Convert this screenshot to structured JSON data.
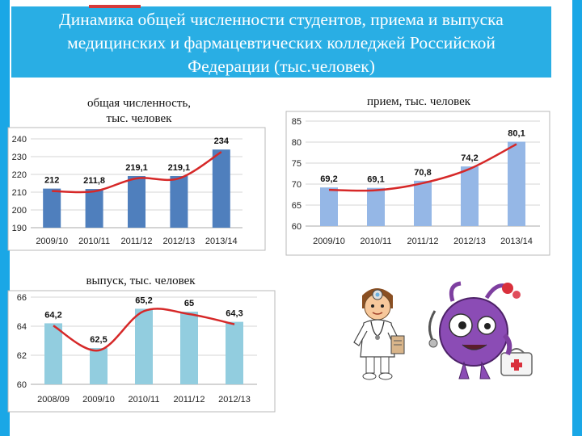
{
  "header": {
    "title_lines": [
      "Динамика общей численности студентов, приема и выпуска",
      "медицинских и фармацевтических колледжей Российской",
      "Федерации (тыс.человек)"
    ]
  },
  "colors": {
    "header_bg": "#29aee4",
    "side_bar": "#1aa7e6",
    "accent": "#d63a3a",
    "bar_dark_blue": "#4f7fbd",
    "bar_light_blue": "#95b7e6",
    "bar_cyan": "#92cddf",
    "trend_line": "#d62828"
  },
  "chart_data": [
    {
      "type": "bar",
      "title": "общая численность, тыс. человек",
      "title_lines": [
        "общая численность,",
        "тыс. человек"
      ],
      "categories": [
        "2009/10",
        "2010/11",
        "2011/12",
        "2012/13",
        "2013/14"
      ],
      "values": [
        212,
        211.8,
        219.1,
        219.1,
        234
      ],
      "value_labels": [
        "212",
        "211,8",
        "219,1",
        "219,1",
        "234"
      ],
      "ylim": [
        190,
        240
      ],
      "yticks": [
        "190",
        "200",
        "210",
        "220",
        "230",
        "240"
      ],
      "grid": true,
      "trendline": true
    },
    {
      "type": "bar",
      "title": "прием, тыс. человек",
      "title_lines": [
        "прием, тыс. человек"
      ],
      "categories": [
        "2009/10",
        "2010/11",
        "2011/12",
        "2012/13",
        "2013/14"
      ],
      "values": [
        69.2,
        69.1,
        70.8,
        74.2,
        80.1
      ],
      "value_labels": [
        "69,2",
        "69,1",
        "70,8",
        "74,2",
        "80,1"
      ],
      "ylim": [
        60,
        85
      ],
      "yticks": [
        "60",
        "65",
        "70",
        "75",
        "80",
        "85"
      ],
      "grid": true,
      "trendline": true
    },
    {
      "type": "bar",
      "title": "выпуск, тыс. человек",
      "title_lines": [
        "выпуск, тыс. человек"
      ],
      "categories": [
        "2008/09",
        "2009/10",
        "2010/11",
        "2011/12",
        "2012/13"
      ],
      "values": [
        64.2,
        62.5,
        65.2,
        65,
        64.3
      ],
      "value_labels": [
        "64,2",
        "62,5",
        "65,2",
        "65",
        "64,3"
      ],
      "ylim": [
        60,
        66
      ],
      "yticks": [
        "60",
        "62",
        "64",
        "66"
      ],
      "grid": true,
      "trendline": true
    }
  ],
  "illustrations": {
    "doctor": "doctor-cartoon",
    "creature": "purple-cartoon-creature-with-medical-bag"
  }
}
